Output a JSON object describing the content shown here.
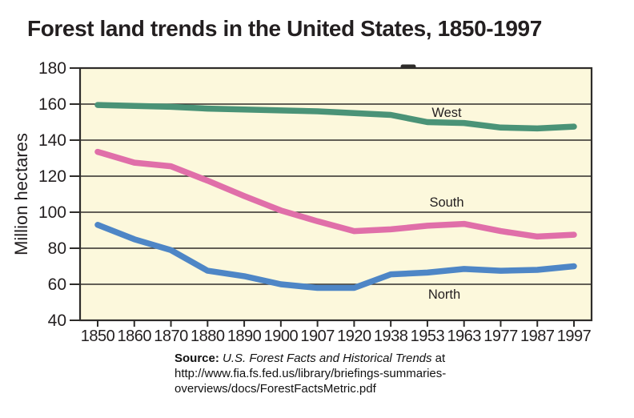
{
  "figure": {
    "kind": "scanned statistical chart"
  },
  "source": {
    "label": "Source:",
    "work_title": "U.S. Forest Facts and Historical Trends",
    "suffix": "at",
    "url_line_1": "http://www.fia.fs.fed.us/library/briefings-summaries-",
    "url_line_2": "overviews/docs/ForestFactsMetric.pdf"
  },
  "colors": {
    "plot_background": "#fcf8dc",
    "grid_line": "#2e2c2a",
    "text": "#231f20",
    "west": "#4a9377",
    "south": "#e06fa9",
    "north": "#4e86c6"
  },
  "chart_data": {
    "type": "line",
    "title": "Forest land trends in the United States, 1850-1997",
    "xlabel": "",
    "ylabel": "Million hectares",
    "ylim": [
      40,
      180
    ],
    "yticks": [
      40,
      60,
      80,
      100,
      120,
      140,
      160,
      180
    ],
    "grid": true,
    "legend_position": "inline-labels-on-plot",
    "categories": [
      "1850",
      "1860",
      "1870",
      "1880",
      "1890",
      "1900",
      "1907",
      "1920",
      "1938",
      "1953",
      "1963",
      "1977",
      "1987",
      "1997"
    ],
    "series": [
      {
        "name": "West",
        "color": "#4a9377",
        "values": [
          159.5,
          159,
          158.5,
          157.5,
          157,
          156.5,
          156,
          155,
          154,
          150,
          149.5,
          147,
          146.5,
          147.5
        ],
        "label_anchor": {
          "x": 558,
          "y": 146
        }
      },
      {
        "name": "South",
        "color": "#e06fa9",
        "values": [
          133.5,
          127.5,
          125.5,
          117.5,
          109,
          101,
          95,
          89.5,
          90.5,
          92.5,
          93.5,
          89.5,
          86.5,
          87.5
        ],
        "label_anchor": {
          "x": 558,
          "y": 258
        }
      },
      {
        "name": "North",
        "color": "#4e86c6",
        "values": [
          93,
          85,
          79,
          67.5,
          64.5,
          60,
          58,
          58,
          65.5,
          66.5,
          68.5,
          67.5,
          68,
          70
        ],
        "label_anchor": {
          "x": 555,
          "y": 373
        }
      }
    ]
  }
}
